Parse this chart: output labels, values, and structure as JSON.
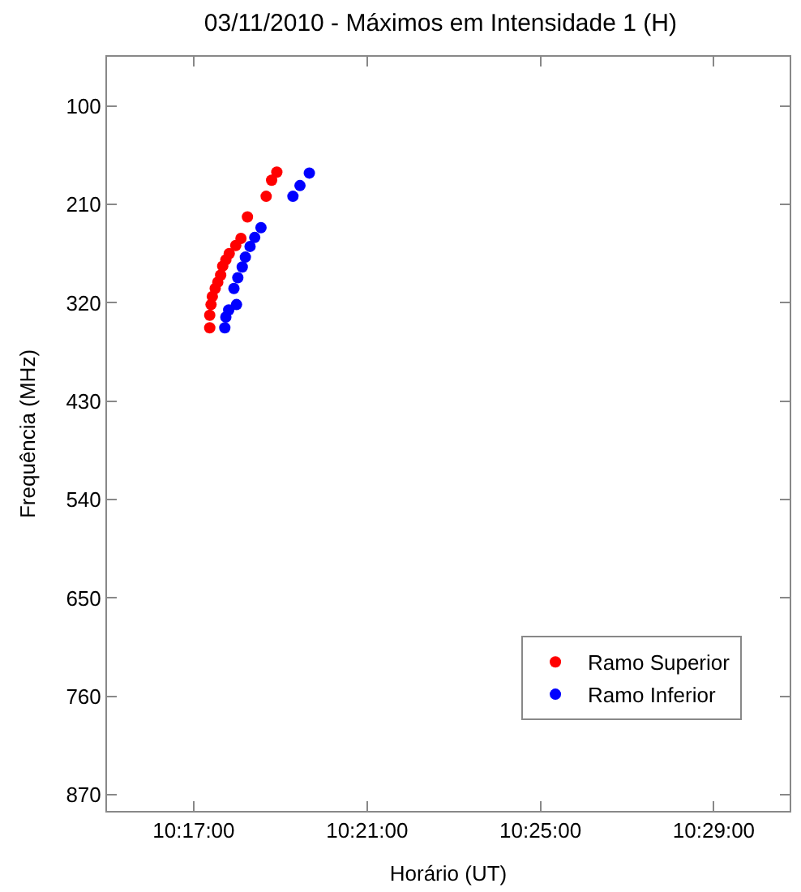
{
  "chart_data": {
    "type": "scatter",
    "title": "03/11/2010 - Máximos em Intensidade 1 (H)",
    "xlabel": "Horário (UT)",
    "ylabel": "Frequência (MHz)",
    "xlim": [
      10.25,
      10.5125
    ],
    "ylim": [
      888,
      45
    ],
    "xticks": [
      {
        "value": 10.283333,
        "label": "10:17:00"
      },
      {
        "value": 10.35,
        "label": "10:21:00"
      },
      {
        "value": 10.416667,
        "label": "10:25:00"
      },
      {
        "value": 10.483333,
        "label": "10:29:00"
      }
    ],
    "yticks": [
      100,
      210,
      320,
      430,
      540,
      650,
      760,
      870
    ],
    "legend": "bottom right",
    "marker": "circle",
    "series": [
      {
        "name": "Ramo Superior",
        "color": "#ff0000",
        "x": [
          10.3153,
          10.3133,
          10.3112,
          10.304,
          10.3015,
          10.2995,
          10.297,
          10.2957,
          10.2945,
          10.2937,
          10.2926,
          10.2916,
          10.2905,
          10.29,
          10.2895,
          10.2895
        ],
        "values": [
          174,
          183,
          201,
          224,
          248,
          256,
          265,
          272,
          279,
          289,
          297,
          304,
          313,
          322,
          334,
          348
        ]
      },
      {
        "name": "Ramo Inferior",
        "color": "#0000ff",
        "x": [
          10.3278,
          10.3242,
          10.3215,
          10.3092,
          10.3068,
          10.305,
          10.3032,
          10.302,
          10.3003,
          10.2988,
          10.2998,
          10.2968,
          10.2957,
          10.2953
        ],
        "values": [
          175,
          189,
          201,
          236,
          247,
          257,
          269,
          280,
          292,
          304,
          322,
          328,
          336,
          348
        ]
      }
    ]
  }
}
